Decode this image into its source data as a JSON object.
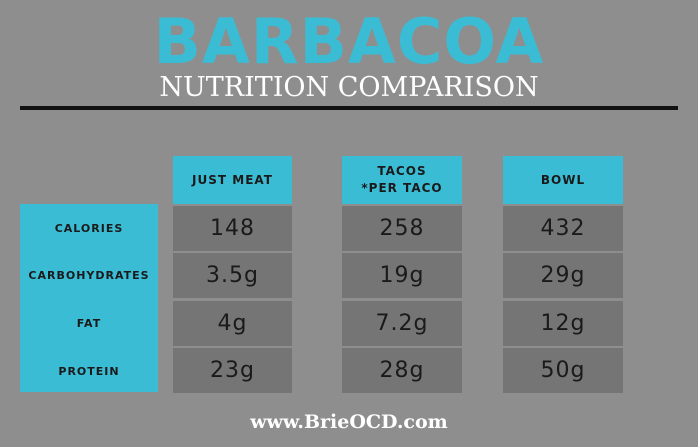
{
  "header": {
    "title": "BARBACOA",
    "subtitle": "NUTRITION COMPARISON"
  },
  "table": {
    "columns": [
      "JUST MEAT",
      "TACOS\n*PER TACO",
      "BOWL"
    ],
    "rows": [
      {
        "label": "CALORIES",
        "values": [
          "148",
          "258",
          "432"
        ]
      },
      {
        "label": "CARBOHYDRATES",
        "values": [
          "3.5g",
          "19g",
          "29g"
        ]
      },
      {
        "label": "FAT",
        "values": [
          "4g",
          "7.2g",
          "12g"
        ]
      },
      {
        "label": "PROTEIN",
        "values": [
          "23g",
          "28g",
          "50g"
        ]
      }
    ]
  },
  "footer": {
    "url": "www.BrieOCD.com"
  },
  "colors": {
    "background": "#8e8e8e",
    "accent": "#3bbcd5",
    "cell": "#757575",
    "rule": "#111111"
  }
}
